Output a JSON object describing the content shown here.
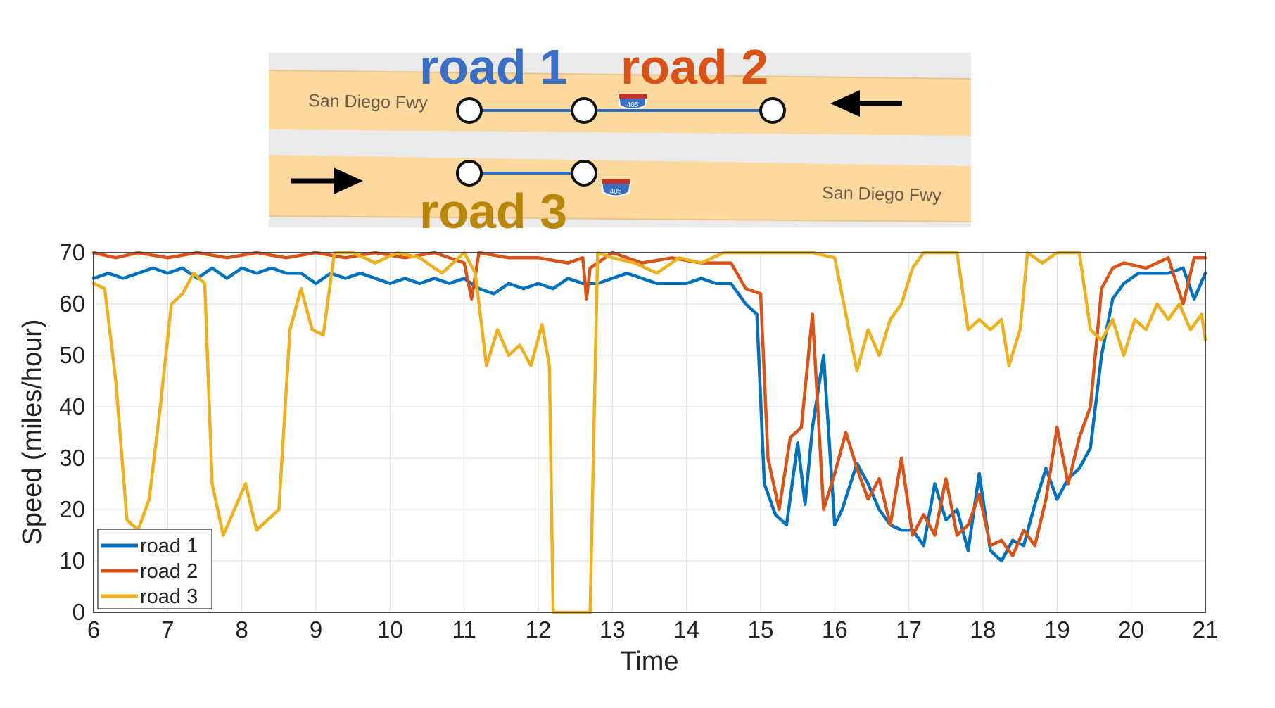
{
  "map": {
    "roads": [
      {
        "label": "road 1",
        "color": "#3a6fc4"
      },
      {
        "label": "road 2",
        "color": "#d95319"
      },
      {
        "label": "road 3",
        "color": "#b8860b"
      }
    ],
    "freeway_name_top": "San Diego Fwy",
    "freeway_name_bottom": "San Diego Fwy",
    "shield_number": "405",
    "freeway_color": "#fdd9a0",
    "segment_color": "#2f6fbf"
  },
  "chart_data": {
    "type": "line",
    "xlabel": "Time",
    "ylabel": "Speed (miles/hour)",
    "xlim": [
      6,
      21
    ],
    "ylim": [
      0,
      70
    ],
    "xticks": [
      6,
      7,
      8,
      9,
      10,
      11,
      12,
      13,
      14,
      15,
      16,
      17,
      18,
      19,
      20,
      21
    ],
    "yticks": [
      0,
      10,
      20,
      30,
      40,
      50,
      60,
      70
    ],
    "grid": true,
    "legend_position": "bottom-left",
    "series": [
      {
        "name": "road 1",
        "color": "#0072bd",
        "points": [
          [
            6.0,
            65
          ],
          [
            6.2,
            66
          ],
          [
            6.4,
            65
          ],
          [
            6.6,
            66
          ],
          [
            6.8,
            67
          ],
          [
            7.0,
            66
          ],
          [
            7.2,
            67
          ],
          [
            7.4,
            65
          ],
          [
            7.6,
            67
          ],
          [
            7.8,
            65
          ],
          [
            8.0,
            67
          ],
          [
            8.2,
            66
          ],
          [
            8.4,
            67
          ],
          [
            8.6,
            66
          ],
          [
            8.8,
            66
          ],
          [
            9.0,
            64
          ],
          [
            9.2,
            66
          ],
          [
            9.4,
            65
          ],
          [
            9.6,
            66
          ],
          [
            9.8,
            65
          ],
          [
            10.0,
            64
          ],
          [
            10.2,
            65
          ],
          [
            10.4,
            64
          ],
          [
            10.6,
            65
          ],
          [
            10.8,
            64
          ],
          [
            11.0,
            65
          ],
          [
            11.2,
            63
          ],
          [
            11.4,
            62
          ],
          [
            11.6,
            64
          ],
          [
            11.8,
            63
          ],
          [
            12.0,
            64
          ],
          [
            12.2,
            63
          ],
          [
            12.4,
            65
          ],
          [
            12.6,
            64
          ],
          [
            12.8,
            64
          ],
          [
            13.0,
            65
          ],
          [
            13.2,
            66
          ],
          [
            13.4,
            65
          ],
          [
            13.6,
            64
          ],
          [
            13.8,
            64
          ],
          [
            14.0,
            64
          ],
          [
            14.2,
            65
          ],
          [
            14.4,
            64
          ],
          [
            14.6,
            64
          ],
          [
            14.8,
            60
          ],
          [
            14.95,
            58
          ],
          [
            15.05,
            25
          ],
          [
            15.2,
            19
          ],
          [
            15.35,
            17
          ],
          [
            15.5,
            33
          ],
          [
            15.6,
            21
          ],
          [
            15.7,
            36
          ],
          [
            15.85,
            50
          ],
          [
            16.0,
            17
          ],
          [
            16.1,
            20
          ],
          [
            16.3,
            29
          ],
          [
            16.45,
            25
          ],
          [
            16.6,
            20
          ],
          [
            16.75,
            17
          ],
          [
            16.9,
            16
          ],
          [
            17.05,
            16
          ],
          [
            17.2,
            13
          ],
          [
            17.35,
            25
          ],
          [
            17.5,
            18
          ],
          [
            17.65,
            20
          ],
          [
            17.8,
            12
          ],
          [
            17.95,
            27
          ],
          [
            18.1,
            12
          ],
          [
            18.25,
            10
          ],
          [
            18.4,
            14
          ],
          [
            18.55,
            13
          ],
          [
            18.7,
            21
          ],
          [
            18.85,
            28
          ],
          [
            19.0,
            22
          ],
          [
            19.15,
            26
          ],
          [
            19.3,
            28
          ],
          [
            19.45,
            32
          ],
          [
            19.6,
            50
          ],
          [
            19.75,
            61
          ],
          [
            19.9,
            64
          ],
          [
            20.1,
            66
          ],
          [
            20.3,
            66
          ],
          [
            20.5,
            66
          ],
          [
            20.7,
            67
          ],
          [
            20.85,
            61
          ],
          [
            21.0,
            66
          ]
        ]
      },
      {
        "name": "road 2",
        "color": "#d95319",
        "points": [
          [
            6.0,
            70
          ],
          [
            6.3,
            69
          ],
          [
            6.6,
            70
          ],
          [
            7.0,
            69
          ],
          [
            7.4,
            70
          ],
          [
            7.8,
            69
          ],
          [
            8.2,
            70
          ],
          [
            8.6,
            69
          ],
          [
            9.0,
            70
          ],
          [
            9.4,
            69
          ],
          [
            9.8,
            70
          ],
          [
            10.2,
            69
          ],
          [
            10.6,
            70
          ],
          [
            11.0,
            68
          ],
          [
            11.1,
            61
          ],
          [
            11.2,
            70
          ],
          [
            11.6,
            69
          ],
          [
            12.0,
            69
          ],
          [
            12.4,
            68
          ],
          [
            12.6,
            69
          ],
          [
            12.65,
            61
          ],
          [
            12.7,
            67
          ],
          [
            13.0,
            70
          ],
          [
            13.4,
            68
          ],
          [
            13.8,
            69
          ],
          [
            14.2,
            68
          ],
          [
            14.6,
            68
          ],
          [
            14.8,
            63
          ],
          [
            15.0,
            62
          ],
          [
            15.1,
            30
          ],
          [
            15.25,
            20
          ],
          [
            15.4,
            34
          ],
          [
            15.55,
            36
          ],
          [
            15.7,
            58
          ],
          [
            15.85,
            20
          ],
          [
            16.0,
            27
          ],
          [
            16.15,
            35
          ],
          [
            16.3,
            28
          ],
          [
            16.45,
            22
          ],
          [
            16.6,
            26
          ],
          [
            16.75,
            17
          ],
          [
            16.9,
            30
          ],
          [
            17.05,
            15
          ],
          [
            17.2,
            19
          ],
          [
            17.35,
            15
          ],
          [
            17.5,
            26
          ],
          [
            17.65,
            15
          ],
          [
            17.8,
            17
          ],
          [
            17.95,
            23
          ],
          [
            18.1,
            13
          ],
          [
            18.25,
            14
          ],
          [
            18.4,
            11
          ],
          [
            18.55,
            16
          ],
          [
            18.7,
            13
          ],
          [
            18.85,
            22
          ],
          [
            19.0,
            36
          ],
          [
            19.15,
            25
          ],
          [
            19.3,
            34
          ],
          [
            19.45,
            40
          ],
          [
            19.6,
            63
          ],
          [
            19.75,
            67
          ],
          [
            19.9,
            68
          ],
          [
            20.2,
            67
          ],
          [
            20.5,
            69
          ],
          [
            20.7,
            60
          ],
          [
            20.85,
            69
          ],
          [
            21.0,
            69
          ]
        ]
      },
      {
        "name": "road 3",
        "color": "#edb120",
        "points": [
          [
            6.0,
            64
          ],
          [
            6.15,
            63
          ],
          [
            6.3,
            45
          ],
          [
            6.45,
            18
          ],
          [
            6.6,
            16
          ],
          [
            6.75,
            22
          ],
          [
            6.9,
            40
          ],
          [
            7.05,
            60
          ],
          [
            7.2,
            62
          ],
          [
            7.35,
            66
          ],
          [
            7.5,
            64
          ],
          [
            7.6,
            25
          ],
          [
            7.75,
            15
          ],
          [
            7.9,
            20
          ],
          [
            8.05,
            25
          ],
          [
            8.2,
            16
          ],
          [
            8.35,
            18
          ],
          [
            8.5,
            20
          ],
          [
            8.65,
            55
          ],
          [
            8.8,
            63
          ],
          [
            8.95,
            55
          ],
          [
            9.1,
            54
          ],
          [
            9.25,
            70
          ],
          [
            9.5,
            70
          ],
          [
            9.8,
            68
          ],
          [
            10.1,
            70
          ],
          [
            10.4,
            69
          ],
          [
            10.7,
            66
          ],
          [
            11.0,
            70
          ],
          [
            11.15,
            66
          ],
          [
            11.3,
            48
          ],
          [
            11.45,
            55
          ],
          [
            11.6,
            50
          ],
          [
            11.75,
            52
          ],
          [
            11.9,
            48
          ],
          [
            12.05,
            56
          ],
          [
            12.15,
            48
          ],
          [
            12.2,
            0
          ],
          [
            12.4,
            0
          ],
          [
            12.6,
            0
          ],
          [
            12.7,
            0
          ],
          [
            12.8,
            70
          ],
          [
            13.0,
            69
          ],
          [
            13.3,
            68
          ],
          [
            13.6,
            66
          ],
          [
            13.9,
            69
          ],
          [
            14.2,
            68
          ],
          [
            14.5,
            70
          ],
          [
            14.8,
            70
          ],
          [
            15.1,
            70
          ],
          [
            15.4,
            70
          ],
          [
            15.7,
            70
          ],
          [
            16.0,
            69
          ],
          [
            16.15,
            58
          ],
          [
            16.3,
            47
          ],
          [
            16.45,
            55
          ],
          [
            16.6,
            50
          ],
          [
            16.75,
            57
          ],
          [
            16.9,
            60
          ],
          [
            17.05,
            67
          ],
          [
            17.2,
            70
          ],
          [
            17.5,
            70
          ],
          [
            17.65,
            70
          ],
          [
            17.8,
            55
          ],
          [
            17.95,
            57
          ],
          [
            18.1,
            55
          ],
          [
            18.25,
            57
          ],
          [
            18.35,
            48
          ],
          [
            18.5,
            55
          ],
          [
            18.6,
            70
          ],
          [
            18.8,
            68
          ],
          [
            19.0,
            70
          ],
          [
            19.3,
            70
          ],
          [
            19.45,
            55
          ],
          [
            19.6,
            53
          ],
          [
            19.75,
            57
          ],
          [
            19.9,
            50
          ],
          [
            20.05,
            57
          ],
          [
            20.2,
            55
          ],
          [
            20.35,
            60
          ],
          [
            20.5,
            57
          ],
          [
            20.65,
            60
          ],
          [
            20.8,
            55
          ],
          [
            20.95,
            58
          ],
          [
            21.0,
            53
          ]
        ]
      }
    ]
  }
}
